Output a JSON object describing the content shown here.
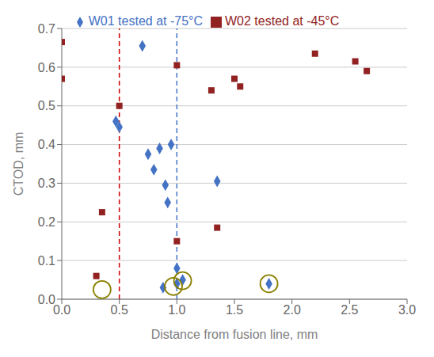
{
  "chart_data": {
    "type": "scatter",
    "xlabel": "Distance from fusion line, mm",
    "ylabel": "CTOD, mm",
    "xlim": [
      0,
      3
    ],
    "ylim": [
      0,
      0.7
    ],
    "xticks": [
      {
        "value": 0,
        "label": "0.0"
      },
      0.5,
      {
        "value": 1,
        "label": "1.0"
      },
      1.5,
      {
        "value": 2,
        "label": "2.0"
      },
      2.5,
      {
        "value": 3,
        "label": "3.0"
      }
    ],
    "yticks": [
      {
        "value": 0,
        "label": "0.0"
      },
      0.1,
      0.2,
      0.3,
      0.4,
      0.5,
      0.6,
      0.7
    ],
    "grid": "y",
    "legend": "top",
    "series": [
      {
        "name": "W01 tested at -75°C",
        "color": "#4472c4",
        "marker": "diamond",
        "x": [
          0.47,
          0.5,
          0.7,
          0.75,
          0.8,
          0.85,
          0.9,
          0.92,
          0.95,
          1.0,
          1.35,
          0.88,
          1.0,
          1.05,
          1.8
        ],
        "values": [
          0.46,
          0.445,
          0.655,
          0.375,
          0.335,
          0.39,
          0.295,
          0.25,
          0.4,
          0.08,
          0.305,
          0.03,
          0.04,
          0.05,
          0.04
        ]
      },
      {
        "name": "W02 tested at -45°C",
        "color": "#922222",
        "marker": "square",
        "x": [
          0.0,
          0.0,
          0.3,
          0.35,
          0.5,
          1.0,
          1.0,
          1.3,
          1.35,
          1.5,
          1.55,
          2.2,
          2.55,
          2.65
        ],
        "values": [
          0.665,
          0.57,
          0.06,
          0.225,
          0.5,
          0.605,
          0.15,
          0.54,
          0.185,
          0.57,
          0.55,
          0.635,
          0.615,
          0.59
        ]
      }
    ],
    "vlines": [
      {
        "x": 0.5,
        "color": "#cc0000",
        "line_style": "dashed"
      },
      {
        "x": 1.0,
        "color": "#4472c4",
        "line_style": "dashed"
      }
    ],
    "circles": {
      "color": "#8B8000",
      "marker": "circle",
      "x": [
        0.97,
        1.05,
        1.8,
        0.35
      ],
      "y": [
        0.033,
        0.048,
        0.04,
        0.025
      ]
    }
  }
}
